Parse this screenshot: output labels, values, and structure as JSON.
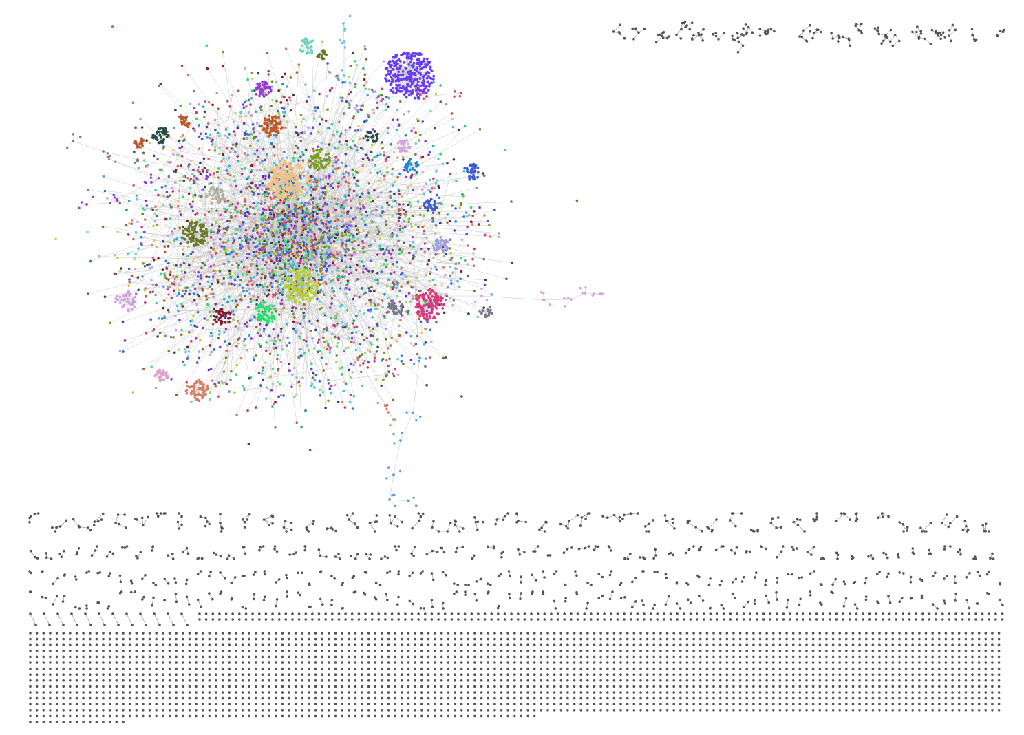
{
  "graph": {
    "background": "#ffffff",
    "edge_color": "#c8c8c8",
    "isolated_node_color": "#555555",
    "main_component": {
      "community_colors": [
        "#6a3df5",
        "#f2c27a",
        "#b5cf3a",
        "#d63a7a",
        "#6b7a2a",
        "#c05a2a",
        "#3a5ad6",
        "#2ae06a",
        "#8a1a2a",
        "#1a8ad6",
        "#9a3ad6",
        "#d6a0e0",
        "#3a3aa0",
        "#6ad6c0",
        "#2a4a4a",
        "#d6806a",
        "#e0a0d0",
        "#7a7a8a",
        "#20b0d0",
        "#a0a0e0",
        "#30d0b0",
        "#9a6a2a",
        "#5aa0e0",
        "#e06a6a",
        "#90e070",
        "#b0b0a0",
        "#7aa020",
        "#a02a8a",
        "#4060c0",
        "#60c0f0"
      ]
    },
    "layout_regions": [
      "main-component",
      "small-components-top-right",
      "tree-components-rows",
      "isolated-node-grid"
    ]
  }
}
